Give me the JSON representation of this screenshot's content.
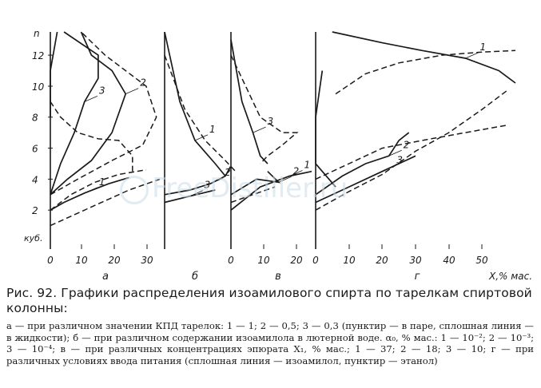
{
  "chart_data": [
    {
      "type": "line",
      "panel_label": "а",
      "xticks": [
        "0",
        "10",
        "20",
        "30"
      ],
      "xlim": [
        0,
        32
      ],
      "ylim": [
        0,
        13.5
      ],
      "series": [
        {
          "name": "1",
          "style": "solid",
          "points": [
            [
              0,
              2
            ],
            [
              4,
              2.5
            ],
            [
              10,
              3.1
            ],
            [
              17,
              3.7
            ],
            [
              23,
              4.1
            ]
          ]
        },
        {
          "name": "2",
          "style": "solid",
          "points": [
            [
              0,
              3
            ],
            [
              5,
              4
            ],
            [
              12,
              5.2
            ],
            [
              18,
              7
            ],
            [
              22,
              9.5
            ],
            [
              18,
              11
            ],
            [
              12,
              12
            ],
            [
              9,
              13.5
            ]
          ]
        },
        {
          "name": "3",
          "style": "solid",
          "points": [
            [
              0,
              3
            ],
            [
              3,
              5
            ],
            [
              7,
              7
            ],
            [
              10,
              9
            ],
            [
              14,
              10.5
            ],
            [
              14,
              12
            ],
            [
              4,
              13.5
            ]
          ]
        },
        {
          "name": "1",
          "style": "dashed",
          "points": [
            [
              0,
              1
            ],
            [
              6,
              1.6
            ],
            [
              14,
              2.4
            ],
            [
              23,
              3.3
            ],
            [
              32,
              4
            ]
          ]
        },
        {
          "name": "2",
          "style": "dashed",
          "points": [
            [
              0,
              2
            ],
            [
              6,
              3
            ],
            [
              13,
              3.8
            ],
            [
              20,
              4.3
            ],
            [
              28,
              4.6
            ]
          ]
        },
        {
          "name": "3",
          "style": "dashed",
          "points": [
            [
              0,
              3
            ],
            [
              8,
              4
            ],
            [
              18,
              5.2
            ],
            [
              27,
              6.2
            ],
            [
              31,
              8
            ],
            [
              28,
              10
            ],
            [
              16,
              12
            ],
            [
              9,
              13.5
            ]
          ]
        },
        {
          "name": "",
          "style": "dashed",
          "points": [
            [
              0,
              9
            ],
            [
              3,
              8
            ],
            [
              8,
              7
            ],
            [
              14,
              6.6
            ],
            [
              20,
              6.5
            ],
            [
              24,
              5.5
            ],
            [
              24,
              4.5
            ]
          ]
        },
        {
          "name": "",
          "style": "solid",
          "points": [
            [
              2,
              13.5
            ],
            [
              0,
              11
            ],
            [
              0,
              8
            ]
          ]
        }
      ],
      "curve_labels": [
        "1",
        "2",
        "3"
      ]
    },
    {
      "type": "line",
      "panel_label": "б",
      "xticks": [],
      "xlim": [
        0,
        12
      ],
      "ylim": [
        0,
        13.5
      ],
      "series": [
        {
          "name": "1",
          "style": "solid",
          "points": [
            [
              0,
              13.5
            ],
            [
              3,
              9
            ],
            [
              6,
              6.5
            ],
            [
              10,
              5
            ],
            [
              12,
              4.2
            ]
          ]
        },
        {
          "name": "2",
          "style": "solid",
          "points": [
            [
              0,
              3
            ],
            [
              5,
              3.3
            ],
            [
              9,
              3.7
            ],
            [
              12,
              4.2
            ],
            [
              13,
              4.8
            ]
          ]
        },
        {
          "name": "3",
          "style": "solid",
          "points": [
            [
              0,
              2.5
            ],
            [
              5,
              2.9
            ],
            [
              10,
              3.3
            ]
          ]
        },
        {
          "name": "",
          "style": "dashed",
          "points": [
            [
              0,
              12
            ],
            [
              4,
              8.5
            ],
            [
              8,
              6.5
            ],
            [
              12,
              5.2
            ],
            [
              14,
              4.5
            ]
          ]
        }
      ],
      "curve_labels": [
        "1",
        "2",
        "3"
      ]
    },
    {
      "type": "line",
      "panel_label": "в",
      "xticks": [
        "0",
        "10",
        "20"
      ],
      "xlim": [
        0,
        22
      ],
      "ylim": [
        0,
        13.5
      ],
      "series": [
        {
          "name": "1",
          "style": "solid",
          "points": [
            [
              0,
              2
            ],
            [
              8,
              3.5
            ],
            [
              16,
              4.2
            ],
            [
              22,
              4.5
            ]
          ]
        },
        {
          "name": "2",
          "style": "solid",
          "points": [
            [
              0,
              3
            ],
            [
              7,
              4
            ],
            [
              13,
              3.8
            ],
            [
              10,
              4.5
            ]
          ]
        },
        {
          "name": "3",
          "style": "solid",
          "points": [
            [
              0,
              13
            ],
            [
              3,
              9
            ],
            [
              6,
              7
            ],
            [
              8,
              5.5
            ],
            [
              10,
              5
            ]
          ]
        },
        {
          "name": "",
          "style": "dashed",
          "points": [
            [
              0,
              12
            ],
            [
              4,
              10
            ],
            [
              8,
              8
            ],
            [
              14,
              7
            ],
            [
              18,
              7
            ],
            [
              14,
              6.2
            ],
            [
              10,
              5.5
            ],
            [
              8,
              5
            ]
          ]
        },
        {
          "name": "",
          "style": "dashed",
          "points": [
            [
              0,
              2.5
            ],
            [
              6,
              3
            ],
            [
              12,
              3.5
            ]
          ]
        }
      ],
      "curve_labels": [
        "1",
        "2",
        "3"
      ]
    },
    {
      "type": "line",
      "panel_label": "г",
      "xticks": [
        "0",
        "10",
        "20",
        "30",
        "40",
        "50"
      ],
      "xlim": [
        0,
        60
      ],
      "ylim": [
        0,
        13.5
      ],
      "xlabel": "X,% мас.",
      "series": [
        {
          "name": "1",
          "style": "solid",
          "points": [
            [
              5,
              13.5
            ],
            [
              20,
              12.8
            ],
            [
              32,
              12.3
            ],
            [
              45,
              11.8
            ],
            [
              55,
              11
            ],
            [
              60,
              10.2
            ]
          ]
        },
        {
          "name": "1",
          "style": "dashed",
          "points": [
            [
              6,
              9.5
            ],
            [
              15,
              10.8
            ],
            [
              25,
              11.5
            ],
            [
              38,
              12
            ],
            [
              50,
              12.2
            ],
            [
              60,
              12.3
            ]
          ]
        },
        {
          "name": "2",
          "style": "solid",
          "points": [
            [
              0,
              3
            ],
            [
              8,
              4.2
            ],
            [
              15,
              5
            ],
            [
              22,
              5.5
            ],
            [
              25,
              6.5
            ],
            [
              28,
              7
            ]
          ]
        },
        {
          "name": "3",
          "style": "solid",
          "points": [
            [
              0,
              2.5
            ],
            [
              10,
              3.5
            ],
            [
              20,
              4.5
            ],
            [
              25,
              5
            ],
            [
              30,
              5.5
            ]
          ]
        },
        {
          "name": "",
          "style": "dashed",
          "points": [
            [
              0,
              4
            ],
            [
              10,
              5
            ],
            [
              20,
              6
            ],
            [
              32,
              6.5
            ],
            [
              45,
              7
            ],
            [
              58,
              7.5
            ]
          ]
        },
        {
          "name": "",
          "style": "dashed",
          "points": [
            [
              0,
              2
            ],
            [
              10,
              3.2
            ],
            [
              20,
              4.3
            ],
            [
              30,
              5.8
            ],
            [
              40,
              7
            ],
            [
              50,
              8.5
            ],
            [
              58,
              9.8
            ]
          ]
        },
        {
          "name": "",
          "style": "solid",
          "points": [
            [
              2,
              11
            ],
            [
              0,
              8
            ],
            [
              0,
              5
            ],
            [
              6,
              3.5
            ]
          ]
        }
      ],
      "curve_labels": [
        "1",
        "2",
        "3"
      ]
    }
  ],
  "axis": {
    "y_unit_label": "куб.",
    "y_top_label": "n",
    "yticks": [
      "2",
      "4",
      "6",
      "8",
      "10",
      "12"
    ]
  },
  "caption": {
    "title": "Рис. 92. Графики распределения изоамилового спирта по тарелкам спиртовой колонны:",
    "line1": "а — при различном значении КПД тарелок: 1 — 1; 2 — 0,5; 3 — 0,3 (пунктир — в паре, сплошная линия — в жидкости); б — при различном содержании изоамилола в лютерной воде. α₀, % мас.: 1 — 10⁻²; 2 — 10⁻³; 3 — 10⁻⁴; в — при различных концентрациях эпюрата X₁, % мас.; 1 — 37; 2 — 18; 3 — 10; г — при различных условиях ввода питания (сплошная линия — изоамилол, пунктир — этанол)"
  },
  "watermark": "FreeDistiller.ru",
  "colors": {
    "ink": "#1a1a1a",
    "background": "#ffffff",
    "watermark": "#c9dbe9"
  }
}
